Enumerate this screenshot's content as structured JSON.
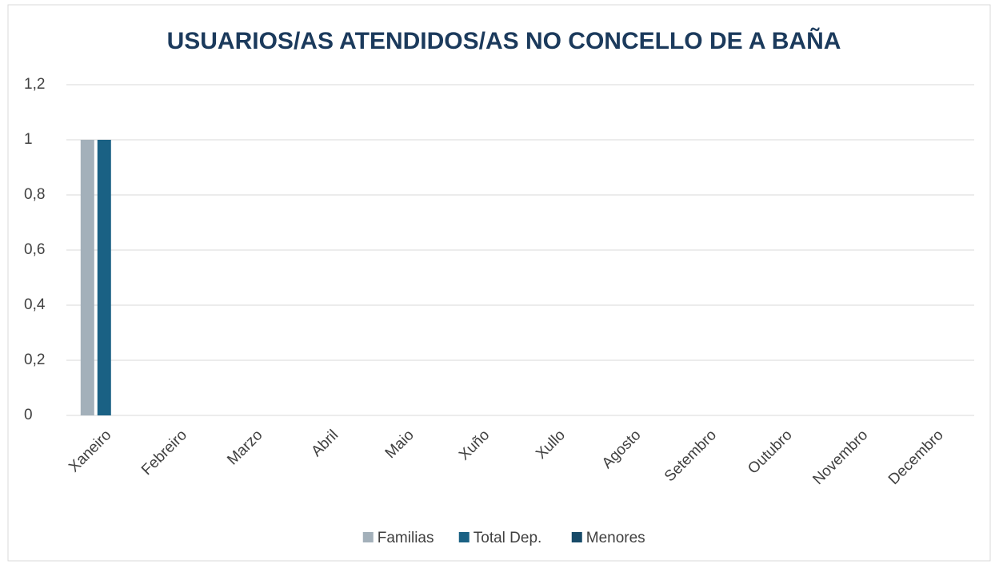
{
  "chart_data": {
    "type": "bar",
    "title": "USUARIOS/AS ATENDIDOS/AS NO CONCELLO DE A BAÑA",
    "categories": [
      "Xaneiro",
      "Febreiro",
      "Marzo",
      "Abril",
      "Maio",
      "Xuño",
      "Xullo",
      "Agosto",
      "Setembro",
      "Outubro",
      "Novembro",
      "Decembro"
    ],
    "series": [
      {
        "name": "Familias",
        "color": "#a3b0ba",
        "values": [
          1,
          0,
          0,
          0,
          0,
          0,
          0,
          0,
          0,
          0,
          0,
          0
        ]
      },
      {
        "name": "Total Dep.",
        "color": "#1a6184",
        "values": [
          1,
          0,
          0,
          0,
          0,
          0,
          0,
          0,
          0,
          0,
          0,
          0
        ]
      },
      {
        "name": "Menores",
        "color": "#174a68",
        "values": [
          0,
          0,
          0,
          0,
          0,
          0,
          0,
          0,
          0,
          0,
          0,
          0
        ]
      }
    ],
    "ylim": [
      0,
      1.2
    ],
    "yticks": [
      0,
      {
        "value": 0.2,
        "label": "0,2"
      },
      {
        "value": 0.4,
        "label": "0,4"
      },
      {
        "value": 0.6,
        "label": "0,6"
      },
      {
        "value": 0.8,
        "label": "0,8"
      },
      1,
      {
        "value": 1.2,
        "label": "1,2"
      }
    ],
    "grid": true,
    "legend": "bottom"
  }
}
